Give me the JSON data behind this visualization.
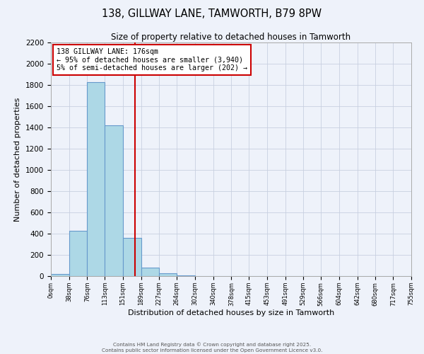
{
  "title": "138, GILLWAY LANE, TAMWORTH, B79 8PW",
  "subtitle": "Size of property relative to detached houses in Tamworth",
  "xlabel": "Distribution of detached houses by size in Tamworth",
  "ylabel": "Number of detached properties",
  "bin_edges": [
    0,
    38,
    76,
    113,
    151,
    189,
    227,
    264,
    302,
    340,
    378,
    415,
    453,
    491,
    529,
    566,
    604,
    642,
    680,
    717,
    755
  ],
  "bin_labels": [
    "0sqm",
    "38sqm",
    "76sqm",
    "113sqm",
    "151sqm",
    "189sqm",
    "227sqm",
    "264sqm",
    "302sqm",
    "340sqm",
    "378sqm",
    "415sqm",
    "453sqm",
    "491sqm",
    "529sqm",
    "566sqm",
    "604sqm",
    "642sqm",
    "680sqm",
    "717sqm",
    "755sqm"
  ],
  "bar_heights": [
    20,
    430,
    1830,
    1420,
    360,
    80,
    25,
    5,
    0,
    0,
    0,
    0,
    0,
    0,
    0,
    0,
    0,
    0,
    0,
    0
  ],
  "bar_color": "#add8e6",
  "bar_edge_color": "#6699cc",
  "background_color": "#eef2fa",
  "grid_color": "#c8d0e0",
  "ylim": [
    0,
    2200
  ],
  "yticks": [
    0,
    200,
    400,
    600,
    800,
    1000,
    1200,
    1400,
    1600,
    1800,
    2000,
    2200
  ],
  "property_line_x": 176,
  "property_line_color": "#cc0000",
  "annotation_line1": "138 GILLWAY LANE: 176sqm",
  "annotation_line2": "← 95% of detached houses are smaller (3,940)",
  "annotation_line3": "5% of semi-detached houses are larger (202) →",
  "footer1": "Contains HM Land Registry data © Crown copyright and database right 2025.",
  "footer2": "Contains public sector information licensed under the Open Government Licence v3.0."
}
